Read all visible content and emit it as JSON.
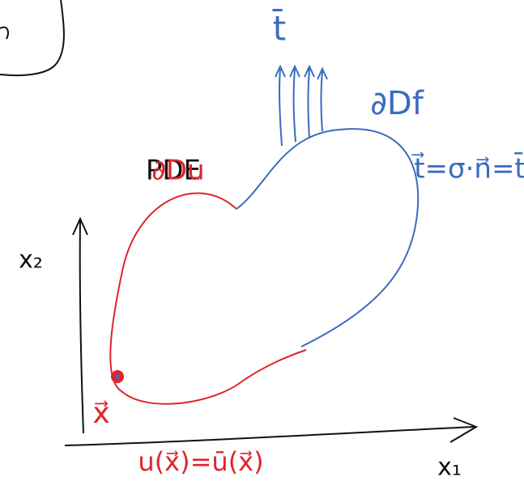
{
  "labels": {
    "traction": "t̄",
    "neumann_boundary": "∂Df",
    "traction_condition": "t⃗=σ·n⃗=t̄",
    "pde": "PDE",
    "dirichlet_boundary": "∂Du",
    "x2_axis": "x₂",
    "x1_axis": "x₁",
    "point": "x⃗",
    "displacement_condition": "u(x⃗)=ū(x⃗)"
  }
}
